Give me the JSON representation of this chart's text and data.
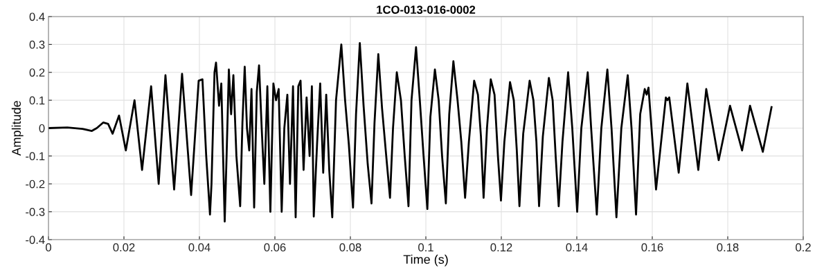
{
  "chart_data": {
    "type": "line",
    "title": "1CO-013-016-0002",
    "xlabel": "Time (s)",
    "ylabel": "Amplitude",
    "xlim": [
      0,
      0.2
    ],
    "ylim": [
      -0.4,
      0.4
    ],
    "xticks": [
      0,
      0.02,
      0.04,
      0.06,
      0.08,
      0.1,
      0.12,
      0.14,
      0.16,
      0.18,
      0.2
    ],
    "yticks": [
      -0.4,
      -0.3,
      -0.2,
      -0.1,
      0,
      0.1,
      0.2,
      0.3,
      0.4
    ],
    "grid": true,
    "marker": "none",
    "line_style": "solid",
    "series": [
      {
        "color": "#000000",
        "x": [
          0,
          0.005,
          0.009,
          0.0115,
          0.0128,
          0.0145,
          0.0158,
          0.017,
          0.0187,
          0.0205,
          0.0228,
          0.0248,
          0.0272,
          0.0292,
          0.031,
          0.0333,
          0.0354,
          0.0378,
          0.0398,
          0.0408,
          0.0418,
          0.0428,
          0.0432,
          0.044,
          0.0444,
          0.0452,
          0.0458,
          0.0467,
          0.0472,
          0.0478,
          0.0484,
          0.049,
          0.0498,
          0.0508,
          0.0514,
          0.052,
          0.0526,
          0.0532,
          0.0538,
          0.0545,
          0.0552,
          0.0558,
          0.0565,
          0.0572,
          0.058,
          0.0588,
          0.0596,
          0.0603,
          0.061,
          0.0618,
          0.0625,
          0.0633,
          0.064,
          0.0648,
          0.0655,
          0.0662,
          0.0668,
          0.0676,
          0.0684,
          0.0692,
          0.0698,
          0.0703,
          0.0712,
          0.072,
          0.0728,
          0.0736,
          0.0744,
          0.0752,
          0.0762,
          0.0776,
          0.0786,
          0.0796,
          0.0807,
          0.0815,
          0.0825,
          0.0835,
          0.0846,
          0.0856,
          0.0864,
          0.0874,
          0.0884,
          0.0895,
          0.0905,
          0.0913,
          0.0923,
          0.0934,
          0.0944,
          0.0954,
          0.0962,
          0.0974,
          0.0984,
          0.0994,
          0.1004,
          0.1012,
          0.1024,
          0.1034,
          0.1043,
          0.1053,
          0.1062,
          0.1073,
          0.1084,
          0.1094,
          0.1104,
          0.1114,
          0.1128,
          0.1138,
          0.1146,
          0.1153,
          0.1162,
          0.1172,
          0.1182,
          0.1191,
          0.1199,
          0.1208,
          0.1223,
          0.1233,
          0.1241,
          0.1248,
          0.1258,
          0.1275,
          0.1285,
          0.1293,
          0.13,
          0.131,
          0.1326,
          0.1336,
          0.1344,
          0.1352,
          0.1362,
          0.1377,
          0.1388,
          0.1401,
          0.1412,
          0.1429,
          0.1438,
          0.1453,
          0.1465,
          0.1481,
          0.1492,
          0.1505,
          0.1518,
          0.1535,
          0.1545,
          0.1557,
          0.1568,
          0.158,
          0.1585,
          0.159,
          0.161,
          0.1636,
          0.164,
          0.1645,
          0.167,
          0.1693,
          0.1722,
          0.1743,
          0.1776,
          0.1806,
          0.1838,
          0.1859,
          0.1893,
          0.1916
        ],
        "values": [
          0,
          0.002,
          -0.003,
          -0.01,
          0.0,
          0.02,
          0.015,
          -0.02,
          0.045,
          -0.08,
          0.1,
          -0.15,
          0.15,
          -0.2,
          0.19,
          -0.22,
          0.195,
          -0.24,
          0.17,
          0.175,
          -0.1,
          -0.31,
          -0.2,
          0.2,
          0.235,
          0.08,
          0.16,
          -0.335,
          -0.1,
          0.21,
          0.05,
          0.19,
          -0.1,
          -0.28,
          0.02,
          0.22,
          0.0,
          -0.08,
          0.14,
          -0.285,
          0.13,
          0.225,
          0.0,
          -0.2,
          0.15,
          -0.3,
          0.16,
          0.1,
          0.14,
          -0.3,
          0.0,
          0.12,
          -0.2,
          0.15,
          -0.32,
          0.15,
          0.17,
          -0.15,
          0.11,
          -0.1,
          0.15,
          -0.317,
          -0.05,
          0.16,
          -0.16,
          0.12,
          -0.15,
          -0.32,
          0.1,
          0.3,
          0.1,
          -0.06,
          -0.285,
          0.05,
          0.305,
          0.08,
          -0.13,
          -0.27,
          0.02,
          0.265,
          0.07,
          -0.1,
          -0.25,
          0.0,
          0.2,
          0.1,
          -0.1,
          -0.28,
          0.1,
          0.29,
          0.1,
          -0.1,
          -0.29,
          0.04,
          0.21,
          0.1,
          -0.1,
          -0.27,
          0.05,
          0.24,
          0.1,
          -0.05,
          -0.25,
          -0.05,
          0.17,
          0.12,
          -0.03,
          -0.25,
          0.0,
          0.175,
          0.12,
          -0.1,
          -0.26,
          -0.05,
          0.165,
          0.1,
          -0.08,
          -0.28,
          -0.02,
          0.17,
          0.1,
          -0.05,
          -0.28,
          -0.03,
          0.18,
          0.1,
          -0.1,
          -0.28,
          -0.05,
          0.2,
          0.0,
          -0.3,
          0.0,
          0.2,
          0.0,
          -0.31,
          0.0,
          0.21,
          0.0,
          -0.32,
          0.0,
          0.19,
          0.0,
          -0.31,
          0.05,
          0.14,
          0.12,
          0.145,
          -0.22,
          0.11,
          0.1,
          0.11,
          -0.16,
          0.16,
          -0.15,
          0.14,
          -0.115,
          0.08,
          -0.08,
          0.08,
          -0.085,
          0.075
        ]
      }
    ]
  }
}
